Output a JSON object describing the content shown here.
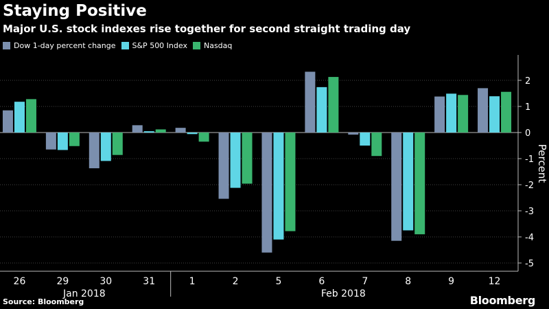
{
  "header": {
    "title": "Staying Positive",
    "subtitle": "Major U.S. stock indexes rise together for second straight trading day"
  },
  "legend": [
    {
      "label": "Dow 1-day percent change",
      "color": "#7b8fae"
    },
    {
      "label": "S&P 500 Index",
      "color": "#5fd6e6"
    },
    {
      "label": "Nasdaq",
      "color": "#3ab56f"
    }
  ],
  "footer": {
    "source": "Source: Bloomberg",
    "logo": "Bloomberg"
  },
  "chart_data": {
    "type": "bar",
    "categories": [
      "26",
      "29",
      "30",
      "31",
      "1",
      "2",
      "5",
      "6",
      "7",
      "8",
      "9",
      "12"
    ],
    "month_labels": [
      {
        "label": "Jan 2018",
        "span": [
          "29",
          "30"
        ]
      },
      {
        "label": "Feb 2018",
        "span": [
          "5",
          "8"
        ]
      }
    ],
    "series": [
      {
        "name": "Dow 1-day percent change",
        "color": "#7b8fae",
        "values": [
          0.85,
          -0.65,
          -1.37,
          0.28,
          0.18,
          -2.54,
          -4.6,
          2.33,
          -0.08,
          -4.15,
          1.38,
          1.7
        ]
      },
      {
        "name": "S&P 500 Index",
        "color": "#5fd6e6",
        "values": [
          1.18,
          -0.67,
          -1.09,
          0.05,
          -0.06,
          -2.12,
          -4.1,
          1.74,
          -0.5,
          -3.75,
          1.49,
          1.39
        ]
      },
      {
        "name": "Nasdaq",
        "color": "#3ab56f",
        "values": [
          1.28,
          -0.52,
          -0.86,
          0.12,
          -0.35,
          -1.96,
          -3.78,
          2.13,
          -0.9,
          -3.9,
          1.44,
          1.56
        ]
      }
    ],
    "y_ticks": [
      2,
      1,
      0,
      -1,
      -2,
      -3,
      -4,
      -5
    ],
    "ylim": [
      -5.2,
      3.0
    ],
    "ylabel": "Percent",
    "grid": true
  }
}
